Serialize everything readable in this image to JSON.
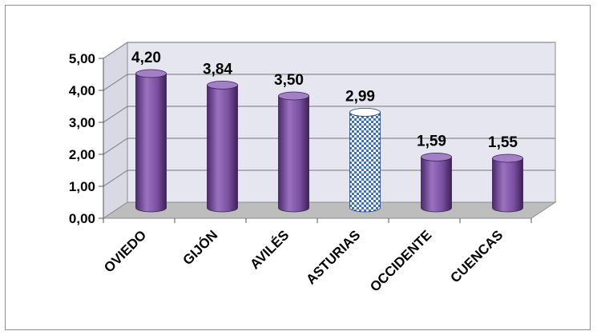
{
  "chart_data": {
    "type": "bar",
    "categories": [
      "OVIEDO",
      "GIJÓN",
      "AVILÉS",
      "ASTURIAS",
      "OCCIDENTE",
      "CUENCAS"
    ],
    "values": [
      4.2,
      3.84,
      3.5,
      2.99,
      1.59,
      1.55
    ],
    "value_labels": [
      "4,20",
      "3,84",
      "3,50",
      "2,99",
      "1,59",
      "1,55"
    ],
    "y_ticks": [
      "0,00",
      "1,00",
      "2,00",
      "3,00",
      "4,00",
      "5,00"
    ],
    "ylim": [
      0,
      5
    ],
    "title": "",
    "xlabel": "",
    "ylabel": "",
    "grid": true,
    "style": "3d-cylinder",
    "highlight_category": "ASTURIAS",
    "colors": {
      "bar": "#7a4fa0",
      "bar_highlight": "#3a6fc4",
      "back_wall": "#e6e6f0",
      "floor": "#bdbdbd",
      "gridline": "#8c8c8c"
    }
  }
}
